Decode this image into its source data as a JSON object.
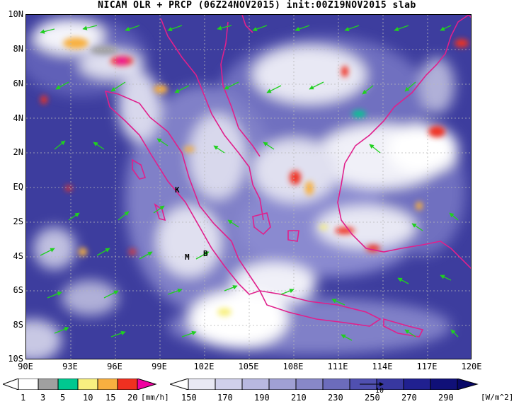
{
  "title": "NICAM OLR + PRCP (06Z24NOV2015) init:00Z19NOV2015 slab",
  "lat_labels": [
    "10N",
    "8N",
    "6N",
    "4N",
    "2N",
    "EQ",
    "2S",
    "4S",
    "6S",
    "8S",
    "10S"
  ],
  "lon_labels": [
    "90E",
    "93E",
    "96E",
    "99E",
    "102E",
    "105E",
    "108E",
    "111E",
    "114E",
    "117E",
    "120E"
  ],
  "map_extent": {
    "lon_min": 90,
    "lon_max": 120,
    "lat_min": -10,
    "lat_max": 10
  },
  "annotations": [
    {
      "text": "K",
      "lon": 100.7,
      "lat": -0.2
    },
    {
      "text": "M",
      "lon": 101.5,
      "lat": -3.9
    },
    {
      "text": "B",
      "lon": 102.1,
      "lat": -3.7
    }
  ],
  "precip_colorbar": {
    "ticks": [
      "1",
      "3",
      "5",
      "10",
      "15",
      "20"
    ],
    "unit": "[mm/h]",
    "colors": [
      "#ffffff",
      "#a0a0a0",
      "#00c890",
      "#f8f080",
      "#f8b040",
      "#f03020",
      "#f000a0"
    ]
  },
  "olr_colorbar": {
    "ticks": [
      "150",
      "170",
      "190",
      "210",
      "230",
      "250",
      "270",
      "290"
    ],
    "unit": "[W/m^2]",
    "colors": [
      "#ffffff",
      "#e8e8f4",
      "#d0d0ec",
      "#b8b8e0",
      "#a0a0d4",
      "#8888c8",
      "#6c6cbc",
      "#5050b0",
      "#3838a0",
      "#202090",
      "#101078"
    ]
  },
  "wind_vector_reference": "10",
  "colors": {
    "coast": "#e0208c",
    "wind": "#20d020",
    "base": "#3d3d9e"
  }
}
